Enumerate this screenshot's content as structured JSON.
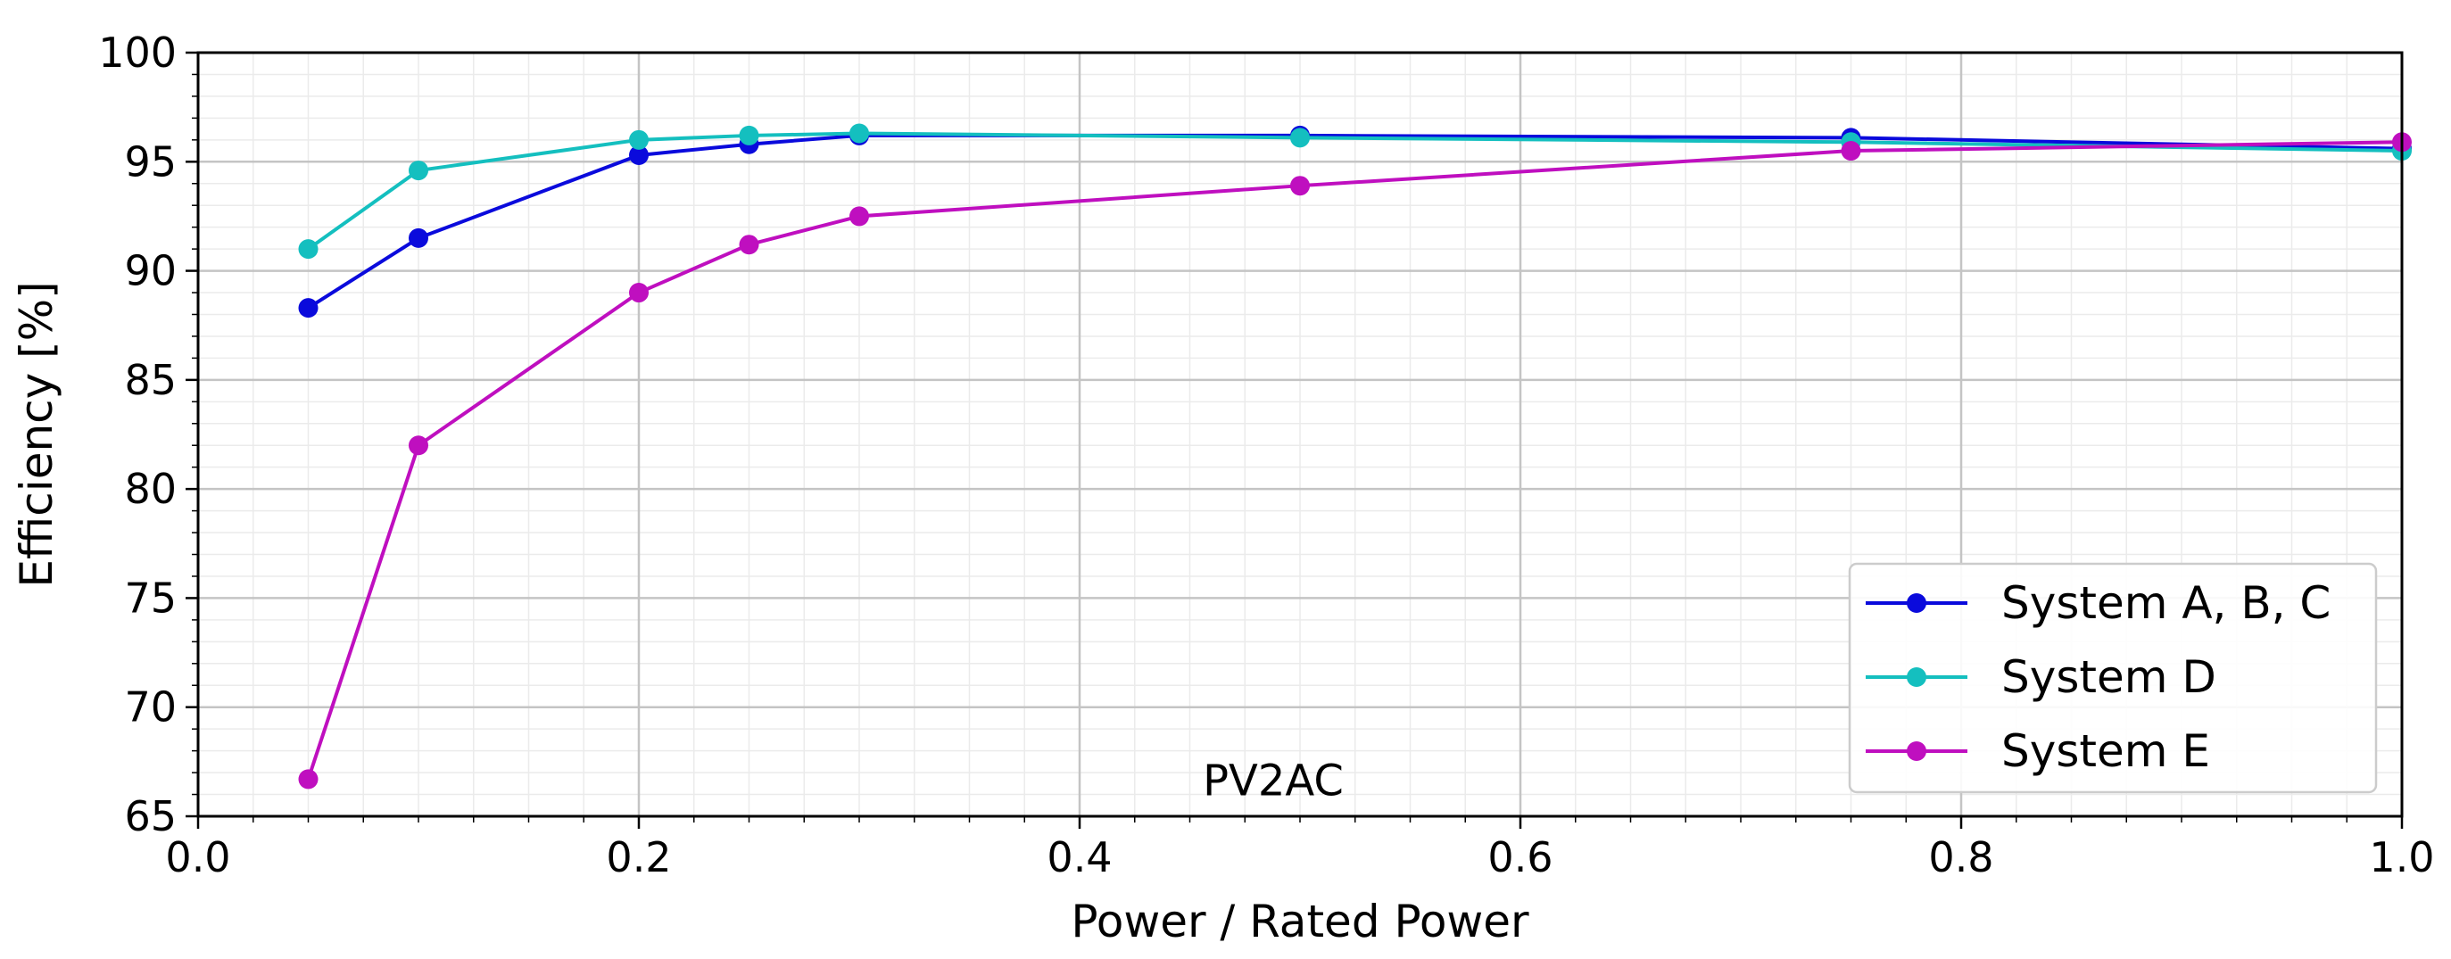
{
  "chart_data": {
    "type": "line",
    "title": "",
    "xlabel": "Power / Rated Power",
    "ylabel": "Efficiency [%]",
    "xlim": [
      0.0,
      1.0
    ],
    "ylim": [
      65,
      100
    ],
    "xticks": [
      0.0,
      0.2,
      0.4,
      0.6,
      0.8,
      1.0
    ],
    "xtick_labels": [
      "0.0",
      "0.2",
      "0.4",
      "0.6",
      "0.8",
      "1.0"
    ],
    "yticks": [
      65,
      70,
      75,
      80,
      85,
      90,
      95,
      100
    ],
    "ytick_labels": [
      "65",
      "70",
      "75",
      "80",
      "85",
      "90",
      "95",
      "100"
    ],
    "grid": true,
    "minor_grid": true,
    "annotation": {
      "text": "PV2AC",
      "x": 0.5,
      "y": 66.2
    },
    "legend_position": "bottom-right",
    "series": [
      {
        "name": "System A, B, C",
        "color": "#0a0adc",
        "x": [
          0.05,
          0.1,
          0.2,
          0.25,
          0.3,
          0.5,
          0.75,
          1.0
        ],
        "y": [
          88.3,
          91.5,
          95.3,
          95.8,
          96.2,
          96.2,
          96.1,
          95.6
        ]
      },
      {
        "name": "System D",
        "color": "#14bfbf",
        "x": [
          0.05,
          0.1,
          0.2,
          0.25,
          0.3,
          0.5,
          0.75,
          1.0
        ],
        "y": [
          91.0,
          94.6,
          96.0,
          96.2,
          96.3,
          96.1,
          95.9,
          95.5
        ]
      },
      {
        "name": "System E",
        "color": "#bf0fbf",
        "x": [
          0.05,
          0.1,
          0.2,
          0.25,
          0.3,
          0.5,
          0.75,
          1.0
        ],
        "y": [
          66.7,
          82.0,
          89.0,
          91.2,
          92.5,
          93.9,
          95.5,
          95.9
        ]
      }
    ]
  }
}
